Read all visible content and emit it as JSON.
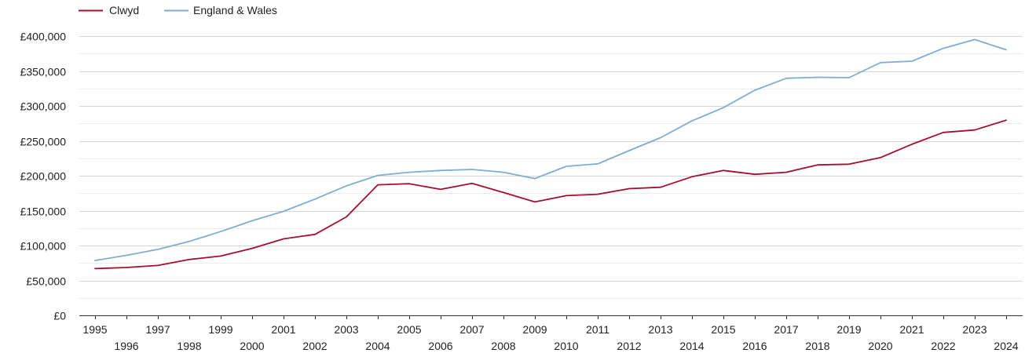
{
  "chart_data": {
    "type": "line",
    "title": "",
    "xlabel": "",
    "ylabel": "",
    "legend_position": "top-left",
    "grid": true,
    "x": [
      1995,
      1996,
      1997,
      1998,
      1999,
      2000,
      2001,
      2002,
      2003,
      2004,
      2005,
      2006,
      2007,
      2008,
      2009,
      2010,
      2011,
      2012,
      2013,
      2014,
      2015,
      2016,
      2017,
      2018,
      2019,
      2020,
      2021,
      2022,
      2023,
      2024
    ],
    "xlim": [
      1995,
      2024
    ],
    "ylim": [
      0,
      400000
    ],
    "y_ticks": [
      {
        "value": 0,
        "label": "£0"
      },
      {
        "value": 50000,
        "label": "£50,000"
      },
      {
        "value": 100000,
        "label": "£100,000"
      },
      {
        "value": 150000,
        "label": "£150,000"
      },
      {
        "value": 200000,
        "label": "£200,000"
      },
      {
        "value": 250000,
        "label": "£250,000"
      },
      {
        "value": 300000,
        "label": "£300,000"
      },
      {
        "value": 350000,
        "label": "£350,000"
      },
      {
        "value": 400000,
        "label": "£400,000"
      }
    ],
    "x_ticks": [
      {
        "value": 1995,
        "label": "1995"
      },
      {
        "value": 1996,
        "label": "1996"
      },
      {
        "value": 1997,
        "label": "1997"
      },
      {
        "value": 1998,
        "label": "1998"
      },
      {
        "value": 1999,
        "label": "1999"
      },
      {
        "value": 2000,
        "label": "2000"
      },
      {
        "value": 2001,
        "label": "2001"
      },
      {
        "value": 2002,
        "label": "2002"
      },
      {
        "value": 2003,
        "label": "2003"
      },
      {
        "value": 2004,
        "label": "2004"
      },
      {
        "value": 2005,
        "label": "2005"
      },
      {
        "value": 2006,
        "label": "2006"
      },
      {
        "value": 2007,
        "label": "2007"
      },
      {
        "value": 2008,
        "label": "2008"
      },
      {
        "value": 2009,
        "label": "2009"
      },
      {
        "value": 2010,
        "label": "2010"
      },
      {
        "value": 2011,
        "label": "2011"
      },
      {
        "value": 2012,
        "label": "2012"
      },
      {
        "value": 2013,
        "label": "2013"
      },
      {
        "value": 2014,
        "label": "2014"
      },
      {
        "value": 2015,
        "label": "2015"
      },
      {
        "value": 2016,
        "label": "2016"
      },
      {
        "value": 2017,
        "label": "2017"
      },
      {
        "value": 2018,
        "label": "2018"
      },
      {
        "value": 2019,
        "label": "2019"
      },
      {
        "value": 2020,
        "label": "2020"
      },
      {
        "value": 2021,
        "label": "2021"
      },
      {
        "value": 2022,
        "label": "2022"
      },
      {
        "value": 2023,
        "label": "2023"
      },
      {
        "value": 2024,
        "label": "2024"
      }
    ],
    "series": [
      {
        "name": "Clwyd",
        "color": "#a50f2d",
        "values": [
          67000,
          68500,
          71500,
          80000,
          85000,
          96000,
          109500,
          116000,
          141000,
          187000,
          188500,
          180500,
          189000,
          176000,
          162500,
          171500,
          173500,
          181500,
          183500,
          198500,
          207500,
          202000,
          205000,
          215500,
          216500,
          226000,
          245000,
          262000,
          265500,
          279500
        ]
      },
      {
        "name": "England & Wales",
        "color": "#7fadd3",
        "values": [
          78500,
          86000,
          94500,
          106000,
          120000,
          135500,
          149000,
          166500,
          185500,
          200500,
          205000,
          207500,
          209000,
          205000,
          196000,
          213500,
          217000,
          236000,
          254500,
          278500,
          297500,
          322500,
          339500,
          341000,
          340500,
          362000,
          364000,
          382500,
          395000,
          380500
        ]
      }
    ]
  }
}
